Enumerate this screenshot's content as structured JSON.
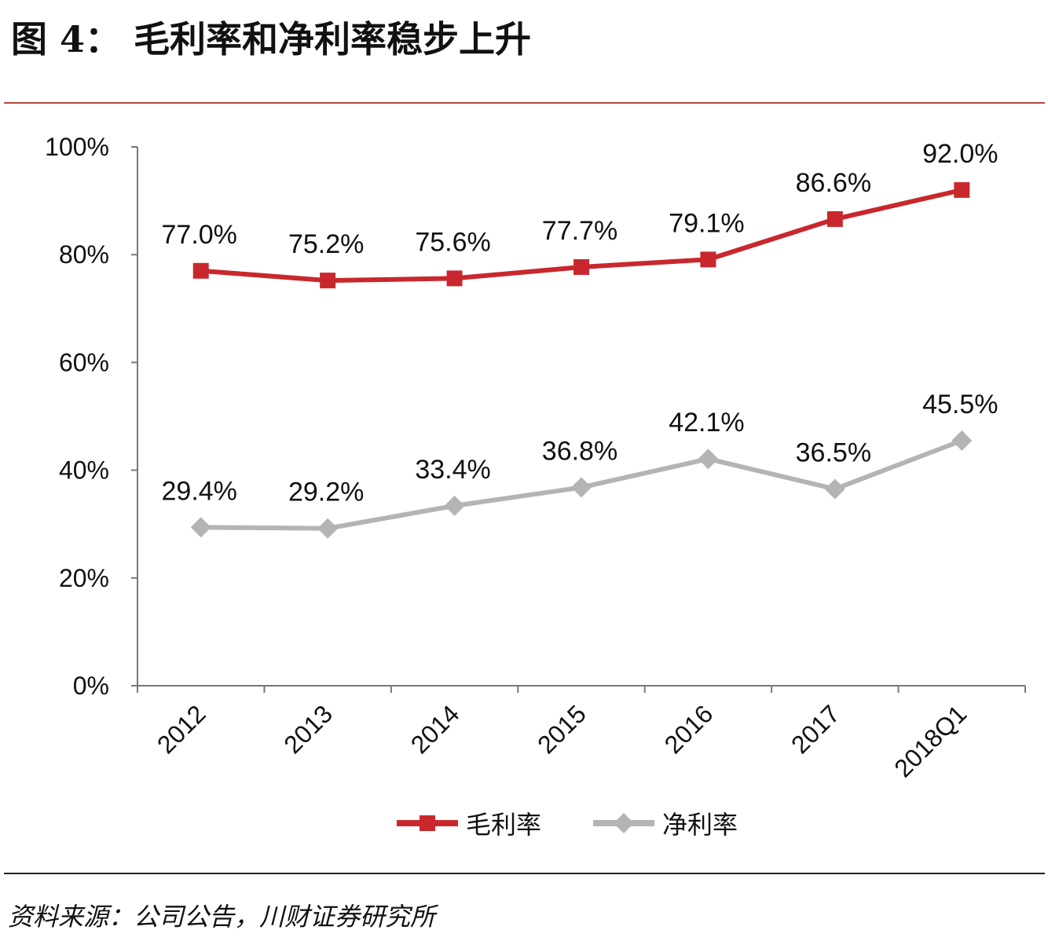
{
  "chart_data": {
    "type": "line",
    "title": "图 4： 毛利率和净利率稳步上升",
    "categories": [
      "2012",
      "2013",
      "2014",
      "2015",
      "2016",
      "2017",
      "2018Q1"
    ],
    "series": [
      {
        "name": "毛利率",
        "color": "#c8282d",
        "marker": "square",
        "values": [
          77.0,
          75.2,
          75.6,
          77.7,
          79.1,
          86.6,
          92.0
        ],
        "labels": [
          "77.0%",
          "75.2%",
          "75.6%",
          "77.7%",
          "79.1%",
          "86.6%",
          "92.0%"
        ]
      },
      {
        "name": "净利率",
        "color": "#b4b4b4",
        "marker": "diamond",
        "values": [
          29.4,
          29.2,
          33.4,
          36.8,
          42.1,
          36.5,
          45.5
        ],
        "labels": [
          "29.4%",
          "29.2%",
          "33.4%",
          "36.8%",
          "42.1%",
          "36.5%",
          "45.5%"
        ]
      }
    ],
    "yticks": [
      "0%",
      "20%",
      "40%",
      "60%",
      "80%",
      "100%"
    ],
    "ylim": [
      0,
      100
    ],
    "xlabel": "",
    "ylabel": "",
    "grid": false,
    "legend_position": "bottom",
    "source": "资料来源：公司公告，川财证券研究所"
  }
}
